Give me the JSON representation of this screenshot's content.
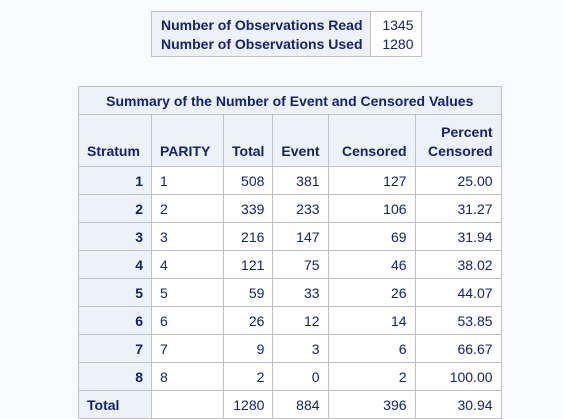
{
  "observations": {
    "rows": [
      {
        "label": "Number of Observations Read",
        "value": "1345"
      },
      {
        "label": "Number of Observations Used",
        "value": "1280"
      }
    ]
  },
  "summary": {
    "title": "Summary of the Number of Event and Censored Values",
    "headers": {
      "stratum": "Stratum",
      "parity": "PARITY",
      "total": "Total",
      "event": "Event",
      "censored": "Censored",
      "percent_line1": "Percent",
      "percent_line2": "Censored"
    },
    "rows": [
      {
        "stratum": "1",
        "parity": "1",
        "total": "508",
        "event": "381",
        "censored": "127",
        "percent": "25.00"
      },
      {
        "stratum": "2",
        "parity": "2",
        "total": "339",
        "event": "233",
        "censored": "106",
        "percent": "31.27"
      },
      {
        "stratum": "3",
        "parity": "3",
        "total": "216",
        "event": "147",
        "censored": "69",
        "percent": "31.94"
      },
      {
        "stratum": "4",
        "parity": "4",
        "total": "121",
        "event": "75",
        "censored": "46",
        "percent": "38.02"
      },
      {
        "stratum": "5",
        "parity": "5",
        "total": "59",
        "event": "33",
        "censored": "26",
        "percent": "44.07"
      },
      {
        "stratum": "6",
        "parity": "6",
        "total": "26",
        "event": "12",
        "censored": "14",
        "percent": "53.85"
      },
      {
        "stratum": "7",
        "parity": "7",
        "total": "9",
        "event": "3",
        "censored": "6",
        "percent": "66.67"
      },
      {
        "stratum": "8",
        "parity": "8",
        "total": "2",
        "event": "0",
        "censored": "2",
        "percent": "100.00"
      }
    ],
    "total_row": {
      "label": "Total",
      "parity": "",
      "total": "1280",
      "event": "884",
      "censored": "396",
      "percent": "30.94"
    }
  }
}
